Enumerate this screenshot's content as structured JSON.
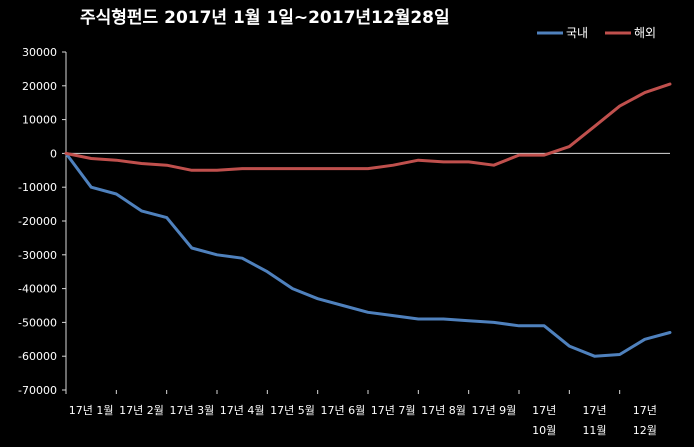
{
  "chart_data": {
    "type": "line",
    "title": "주식형펀드    2017년 1월 1일~2017년12월28일",
    "xlabel": "",
    "ylabel": "",
    "ylim": [
      -70000,
      30000
    ],
    "yticks": [
      "30000",
      "20000",
      "10000",
      "0",
      "-10000",
      "-20000",
      "-30000",
      "-40000",
      "-50000",
      "-60000",
      "-70000"
    ],
    "xtick_labels": [
      [
        "17년 1월"
      ],
      [
        "17년 2월"
      ],
      [
        "17년 3월"
      ],
      [
        "17년 4월"
      ],
      [
        "17년 5월"
      ],
      [
        "17년 6월"
      ],
      [
        "17년 7월"
      ],
      [
        "17년 8월"
      ],
      [
        "17년 9월"
      ],
      [
        "17년",
        "10월"
      ],
      [
        "17년",
        "11월"
      ],
      [
        "17년",
        "12월"
      ]
    ],
    "grid": false,
    "legend_position": "top-right",
    "x": [
      0,
      2,
      4,
      6,
      8,
      10,
      12,
      14,
      16,
      18,
      20,
      22,
      24,
      26,
      28,
      30,
      32,
      34,
      36,
      38,
      40,
      42,
      44,
      46,
      48
    ],
    "series": [
      {
        "name": "국내",
        "color": "#4f81bd",
        "values": [
          0,
          -10000,
          -12000,
          -17000,
          -19000,
          -28000,
          -30000,
          -31000,
          -35000,
          -40000,
          -43000,
          -45000,
          -47000,
          -48000,
          -49000,
          -49000,
          -49500,
          -50000,
          -51000,
          -51000,
          -57000,
          -60000,
          -59500,
          -55000,
          -53000
        ]
      },
      {
        "name": "해외",
        "color": "#c0504d",
        "values": [
          0,
          -1500,
          -2000,
          -3000,
          -3500,
          -5000,
          -5000,
          -4500,
          -4500,
          -4500,
          -4500,
          -4500,
          -4500,
          -3500,
          -2000,
          -2500,
          -2500,
          -3500,
          -500,
          -500,
          2000,
          8000,
          14000,
          18000,
          20500
        ]
      }
    ]
  }
}
